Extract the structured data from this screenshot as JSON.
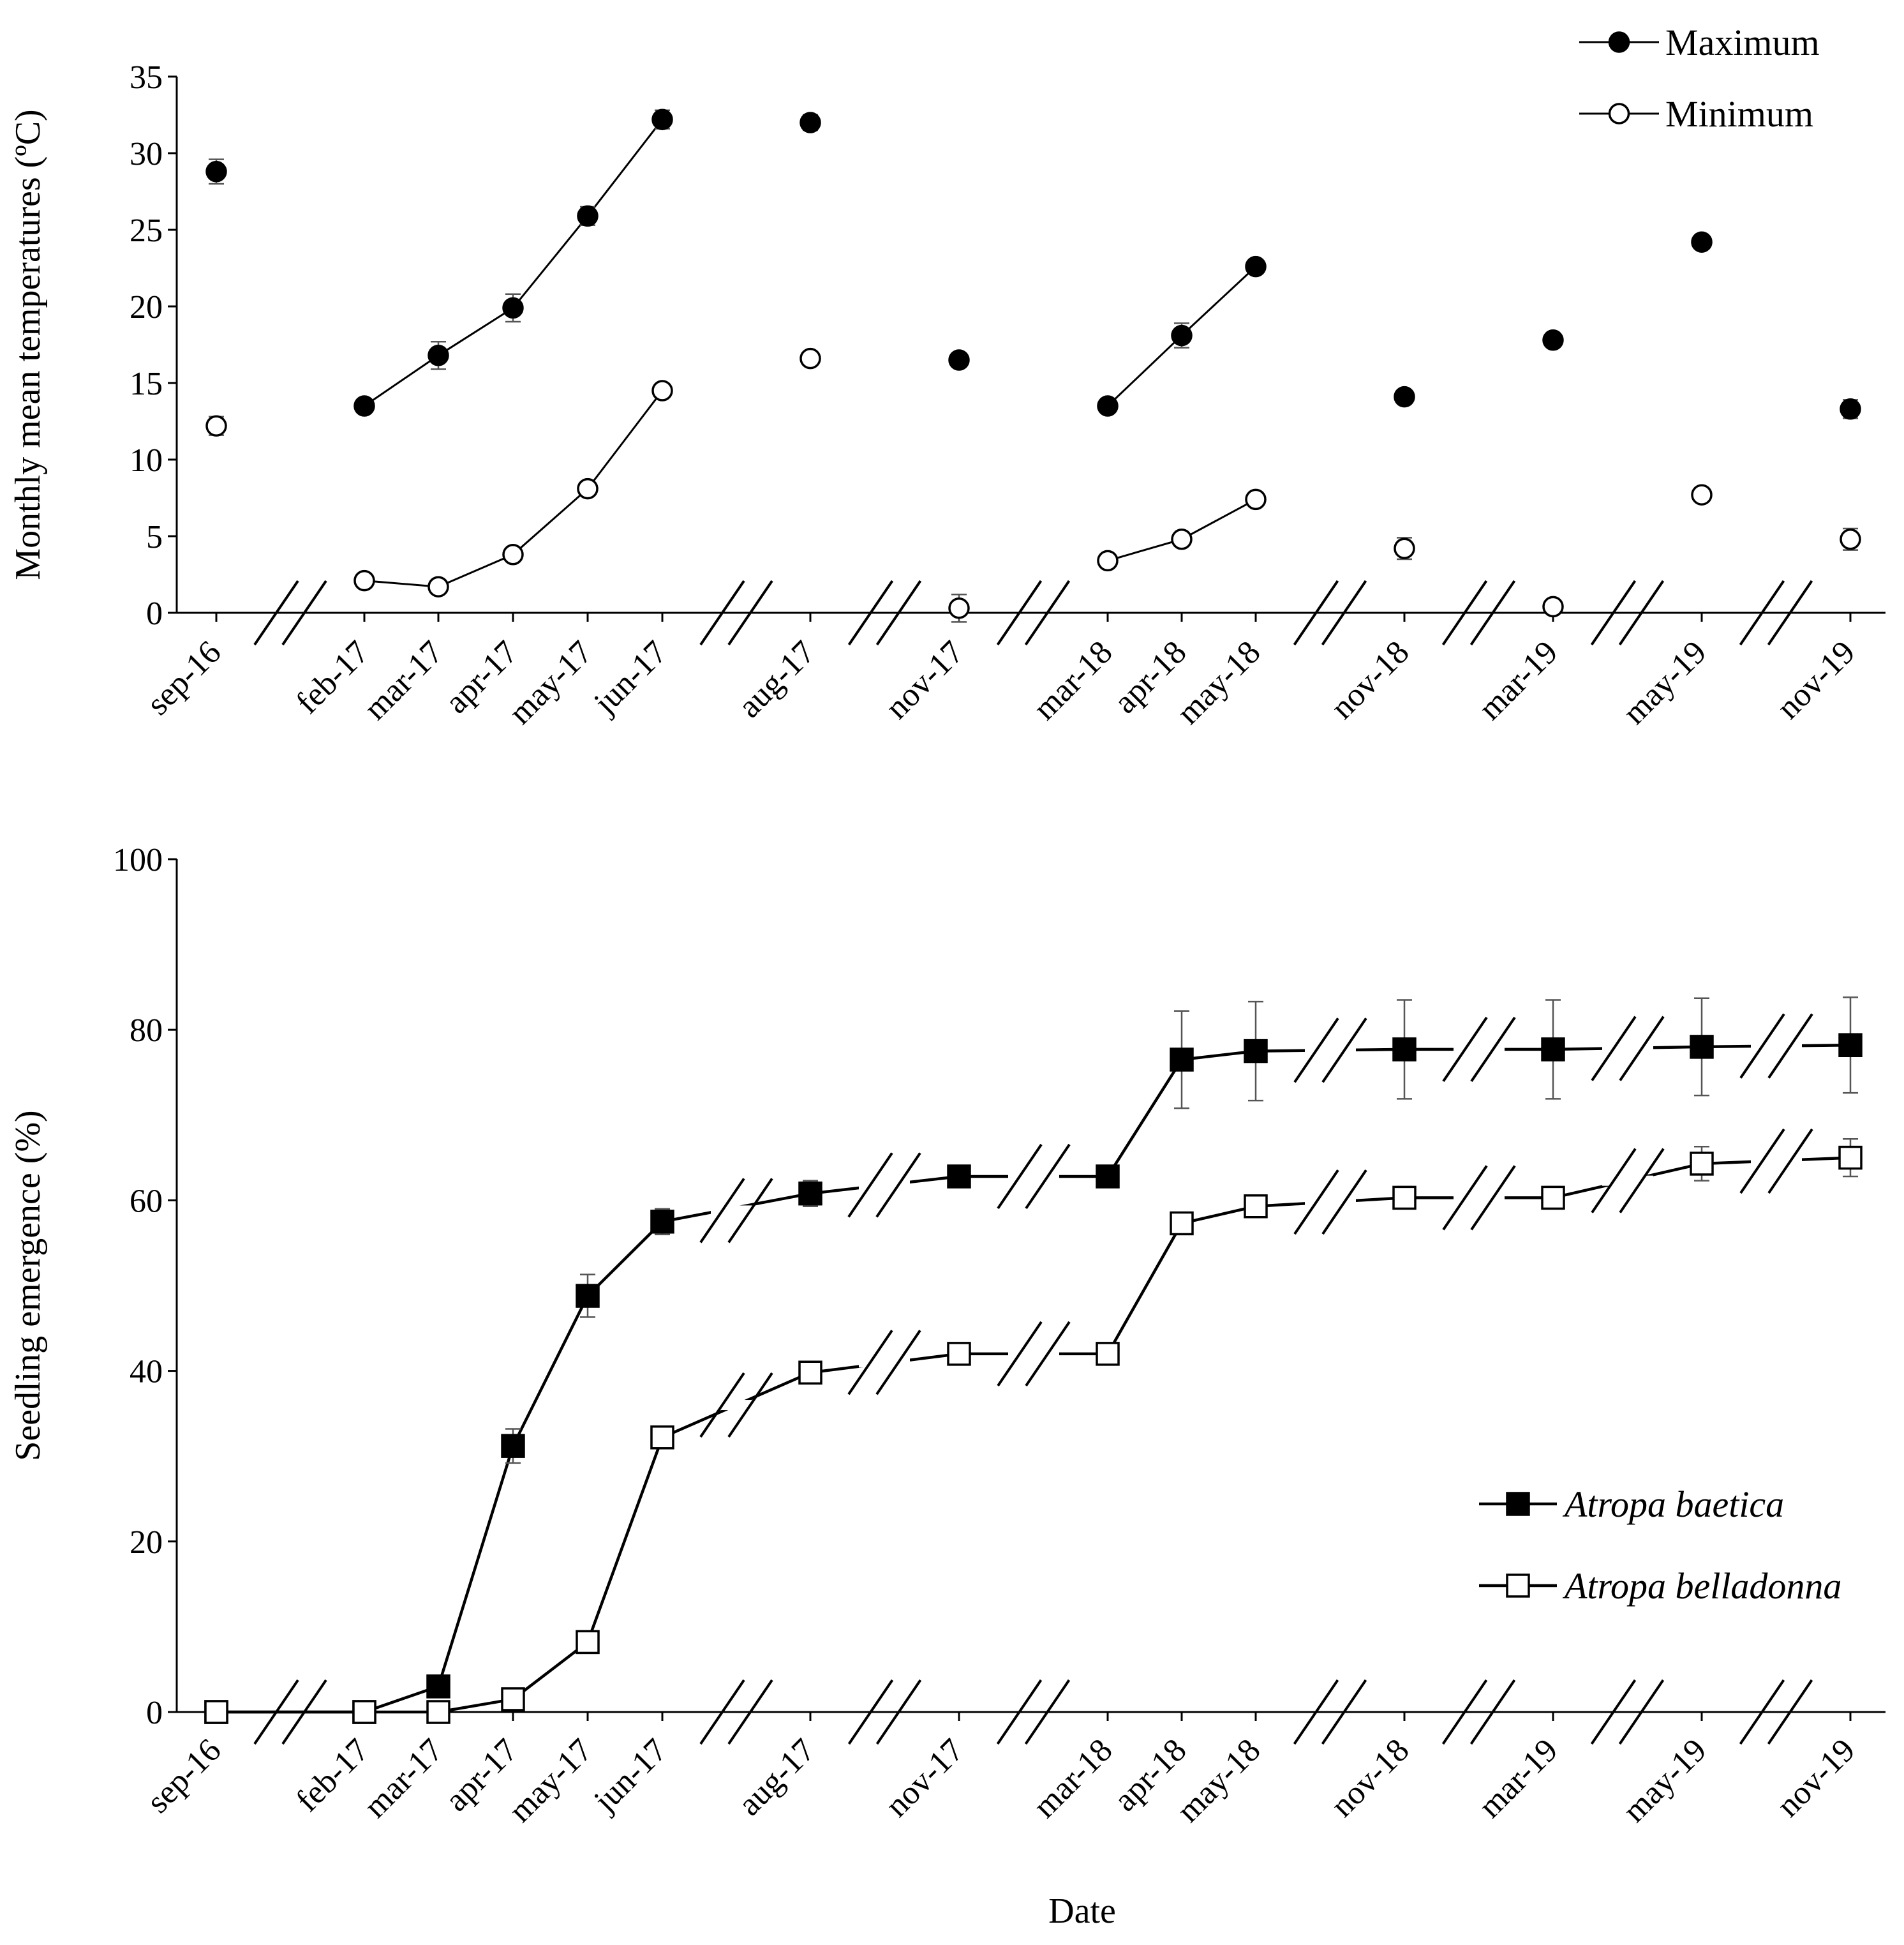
{
  "chart_data": [
    {
      "type": "line",
      "title": "",
      "xlabel": "",
      "ylabel": "Monthly mean temperatures (ºC)",
      "ylim": [
        0,
        35
      ],
      "yticks": [
        0,
        5,
        10,
        15,
        20,
        25,
        30,
        35
      ],
      "categories": [
        "sep-16",
        "feb-17",
        "mar-17",
        "apr-17",
        "may-17",
        "jun-17",
        "aug-17",
        "nov-17",
        "mar-18",
        "apr-18",
        "may-18",
        "nov-18",
        "mar-19",
        "may-19",
        "nov-19"
      ],
      "axis_breaks_after": [
        0,
        5,
        6,
        7,
        10,
        11,
        12,
        13
      ],
      "legend_position": "top-right",
      "series": [
        {
          "name": "Maximum",
          "marker": "filled-circle",
          "values": [
            28.8,
            13.5,
            16.8,
            19.9,
            25.9,
            32.2,
            32.0,
            16.5,
            13.5,
            18.1,
            22.6,
            14.1,
            17.8,
            24.2,
            13.3
          ],
          "errors": [
            0.8,
            0.3,
            0.9,
            0.9,
            0.6,
            0.6,
            0.5,
            0.3,
            0.4,
            0.8,
            0.3,
            0.3,
            0.3,
            0.3,
            0.6
          ],
          "connected_groups": [
            [
              1,
              5
            ],
            [
              8,
              10
            ]
          ]
        },
        {
          "name": "Minimum",
          "marker": "open-circle",
          "values": [
            12.2,
            2.1,
            1.7,
            3.8,
            8.1,
            14.5,
            16.6,
            0.3,
            3.4,
            4.8,
            7.4,
            4.2,
            0.4,
            7.7,
            4.8
          ],
          "errors": [
            0.6,
            0.3,
            0.3,
            0.4,
            0.4,
            0.3,
            0.3,
            0.9,
            0.3,
            0.4,
            0.3,
            0.7,
            0.3,
            0.3,
            0.7
          ],
          "connected_groups": [
            [
              1,
              5
            ],
            [
              8,
              10
            ]
          ]
        }
      ]
    },
    {
      "type": "line",
      "title": "",
      "xlabel": "Date",
      "ylabel": "Seedling emergence (%)",
      "ylim": [
        0,
        100
      ],
      "yticks": [
        0,
        20,
        40,
        60,
        80,
        100
      ],
      "categories": [
        "sep-16",
        "feb-17",
        "mar-17",
        "apr-17",
        "may-17",
        "jun-17",
        "aug-17",
        "nov-17",
        "mar-18",
        "apr-18",
        "may-18",
        "nov-18",
        "mar-19",
        "may-19",
        "nov-19"
      ],
      "axis_breaks_after": [
        0,
        5,
        6,
        7,
        10,
        11,
        12,
        13
      ],
      "legend_position": "bottom-right",
      "series": [
        {
          "name": "Atropa baetica",
          "marker": "filled-square",
          "values": [
            0,
            0,
            3,
            31.2,
            48.8,
            57.5,
            60.8,
            62.8,
            62.8,
            76.5,
            77.5,
            77.7,
            77.7,
            78.0,
            78.2
          ],
          "errors": [
            0,
            0,
            0.5,
            2.0,
            2.5,
            1.5,
            1.5,
            0.6,
            0.6,
            5.7,
            5.8,
            5.8,
            5.8,
            5.7,
            5.6
          ]
        },
        {
          "name": "Atropa belladonna",
          "marker": "open-square",
          "values": [
            0,
            0,
            0,
            1.5,
            8.2,
            32.2,
            39.8,
            42.0,
            42.0,
            57.3,
            59.3,
            60.3,
            60.3,
            64.3,
            65.0
          ],
          "errors": [
            0,
            0,
            0,
            0.3,
            0.5,
            0.5,
            0.8,
            0.5,
            0.5,
            0.6,
            1.0,
            1.3,
            1.3,
            2.0,
            2.2
          ]
        }
      ]
    }
  ]
}
